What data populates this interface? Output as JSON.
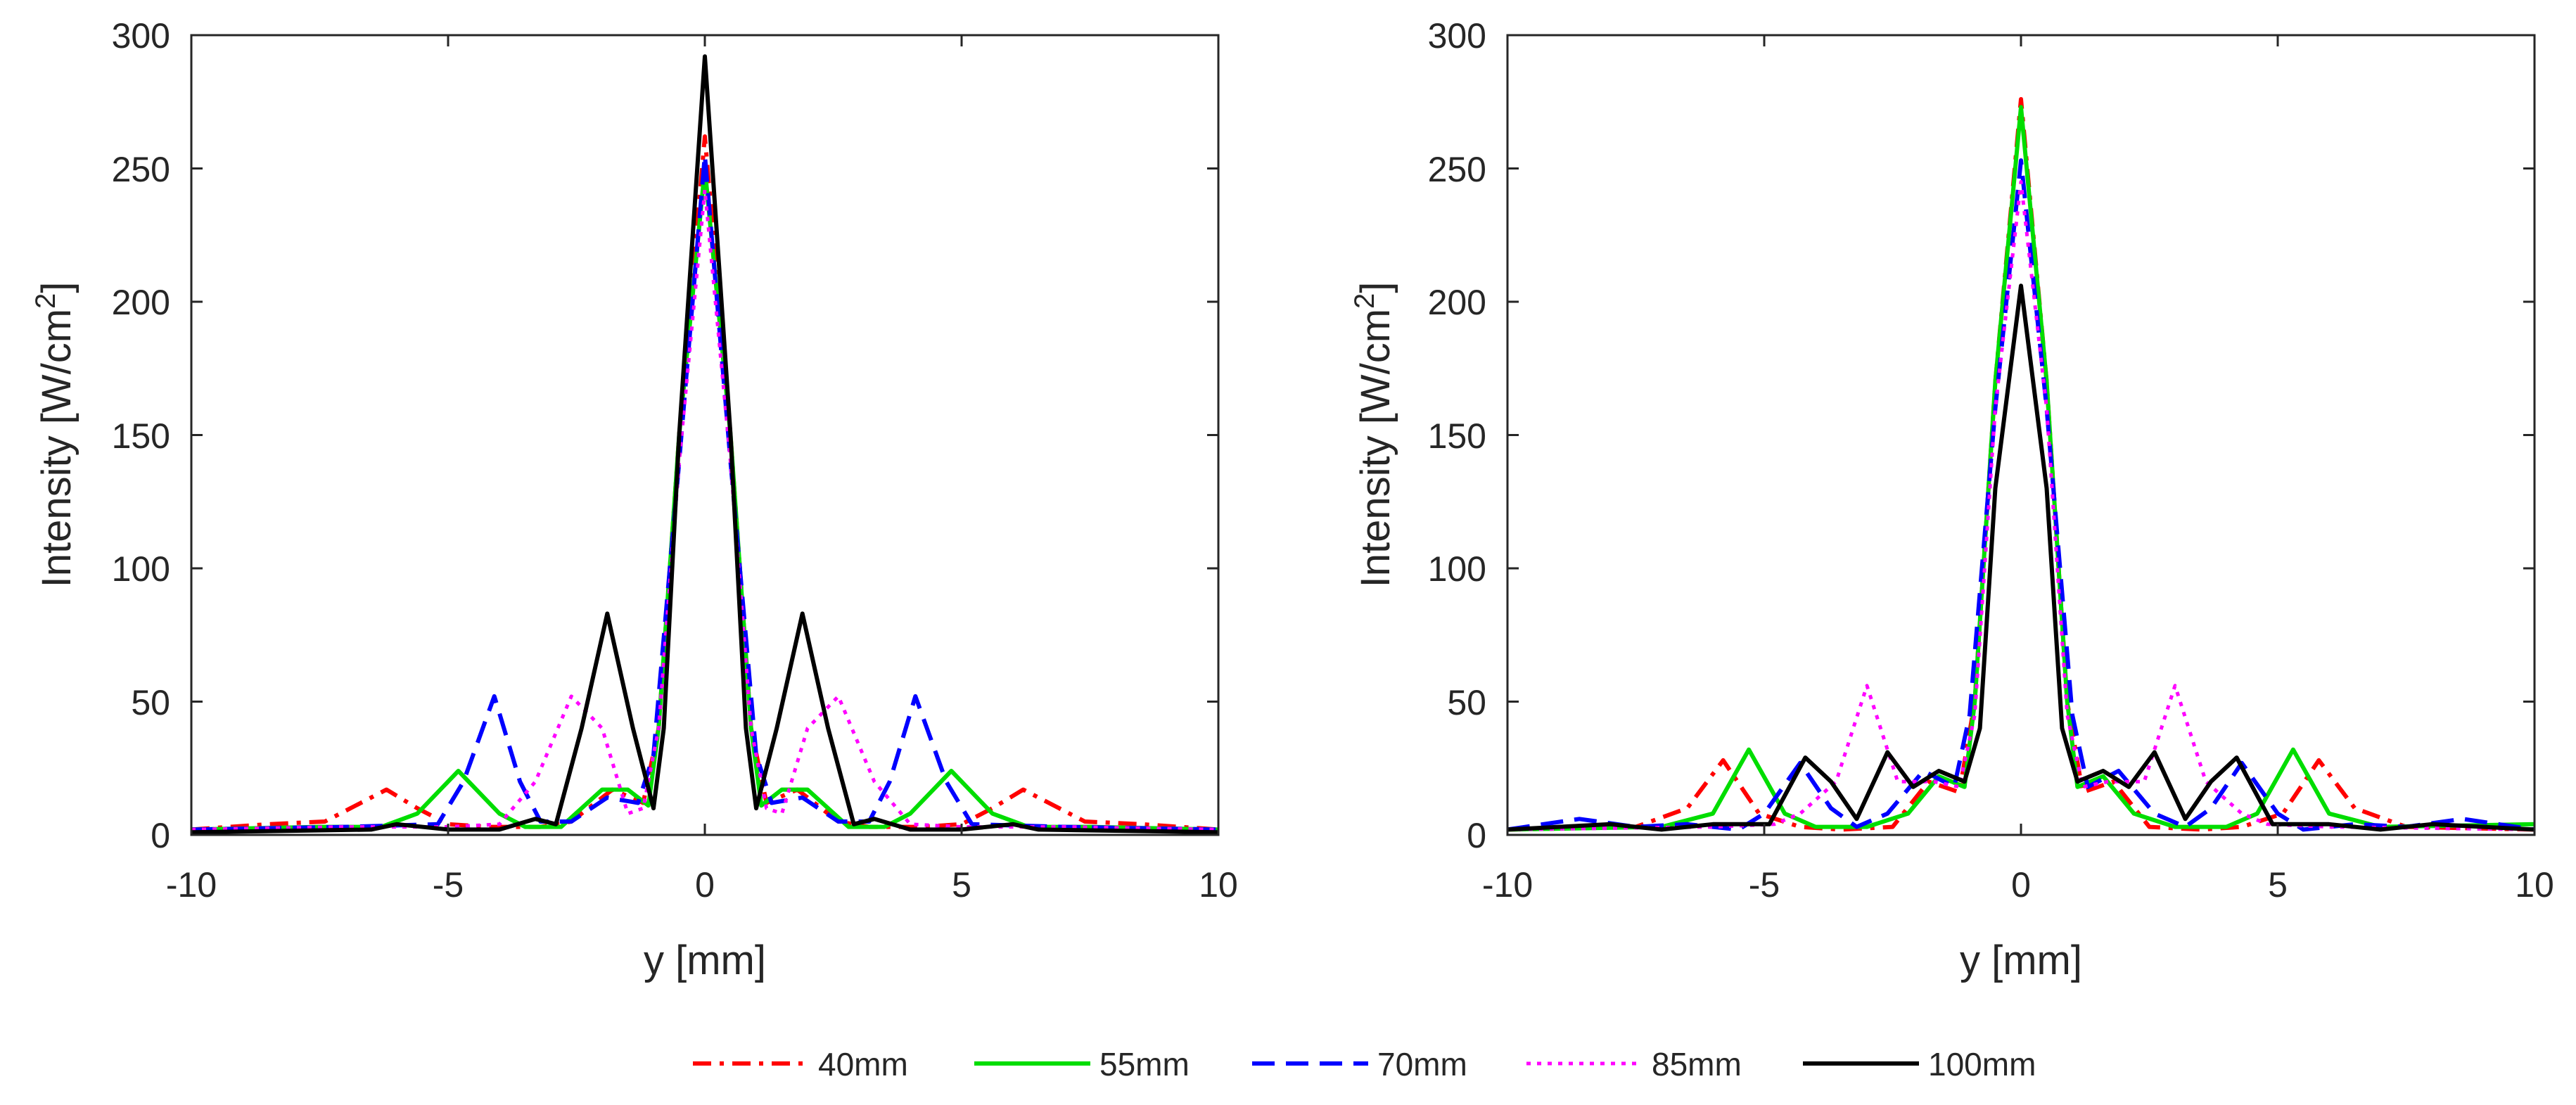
{
  "chart_data": [
    {
      "type": "line",
      "title": "",
      "xlabel": "y [mm]",
      "ylabel_main": "Intensity [W/cm",
      "ylabel_sup": "2",
      "ylabel_end": "]",
      "xlim": [
        -10,
        10
      ],
      "ylim": [
        0,
        300
      ],
      "xticks": [
        -10,
        -5,
        0,
        5,
        10
      ],
      "yticks": [
        0,
        50,
        100,
        150,
        200,
        250,
        300
      ],
      "xtick_labels": [
        "-10",
        "-5",
        "0",
        "5",
        "10"
      ],
      "ytick_labels": [
        "0",
        "50",
        "100",
        "150",
        "200",
        "250",
        "300"
      ],
      "grid": false,
      "series": [
        {
          "name": "40mm",
          "color": "#ff0000",
          "style": "dash-dot",
          "x": [
            -10,
            -8.5,
            -7.4,
            -6.9,
            -6.2,
            -5.6,
            -5.0,
            -4.2,
            -3.2,
            -2.6,
            -1.8,
            -1.2,
            -0.9,
            -0.5,
            0,
            0.5,
            0.9,
            1.2,
            1.8,
            2.6,
            3.2,
            4.2,
            5.0,
            5.6,
            6.2,
            6.9,
            7.4,
            8.5,
            10
          ],
          "y": [
            2,
            4,
            5,
            10,
            17,
            10,
            4,
            3,
            3,
            5,
            17,
            12,
            40,
            150,
            262,
            150,
            40,
            12,
            17,
            5,
            3,
            3,
            4,
            10,
            17,
            10,
            5,
            4,
            2
          ]
        },
        {
          "name": "55mm",
          "color": "#00dd00",
          "style": "solid",
          "x": [
            -10,
            -7.5,
            -6.3,
            -5.6,
            -4.8,
            -4.0,
            -3.5,
            -2.8,
            -2.0,
            -1.5,
            -1.1,
            -0.9,
            -0.5,
            0,
            0.5,
            0.9,
            1.1,
            1.5,
            2.0,
            2.8,
            3.5,
            4.0,
            4.8,
            5.6,
            6.3,
            7.5,
            10
          ],
          "y": [
            2,
            3,
            3,
            8,
            24,
            8,
            3,
            3,
            17,
            17,
            11,
            40,
            150,
            250,
            150,
            40,
            11,
            17,
            17,
            3,
            3,
            8,
            24,
            8,
            3,
            3,
            2
          ]
        },
        {
          "name": "70mm",
          "color": "#0000ff",
          "style": "dash",
          "x": [
            -10,
            -7,
            -5.2,
            -4.7,
            -4.1,
            -3.6,
            -3.2,
            -2.6,
            -1.9,
            -1.3,
            -1.0,
            -0.5,
            0,
            0.5,
            1.0,
            1.3,
            1.9,
            2.6,
            3.2,
            3.6,
            4.1,
            4.7,
            5.2,
            7,
            10
          ],
          "y": [
            2,
            3,
            4,
            20,
            52,
            20,
            5,
            5,
            14,
            12,
            30,
            140,
            255,
            140,
            30,
            12,
            14,
            5,
            5,
            20,
            52,
            20,
            4,
            3,
            2
          ]
        },
        {
          "name": "85mm",
          "color": "#ff00ff",
          "style": "dot",
          "x": [
            -10,
            -7,
            -5,
            -4,
            -3.3,
            -2.6,
            -2.0,
            -1.5,
            -1.2,
            -0.9,
            -0.5,
            0,
            0.5,
            0.9,
            1.2,
            1.5,
            2.0,
            2.6,
            3.3,
            4,
            5,
            7,
            10
          ],
          "y": [
            2,
            3,
            3,
            4,
            20,
            52,
            40,
            8,
            10,
            40,
            140,
            242,
            140,
            40,
            10,
            8,
            40,
            52,
            20,
            4,
            3,
            3,
            2
          ]
        },
        {
          "name": "100mm",
          "color": "#000000",
          "style": "solid",
          "x": [
            -10,
            -6.5,
            -6,
            -5,
            -4,
            -3.3,
            -2.9,
            -2.4,
            -1.9,
            -1.4,
            -1.0,
            -0.8,
            -0.5,
            0,
            0.5,
            0.8,
            1.0,
            1.4,
            1.9,
            2.4,
            2.9,
            3.3,
            4,
            5,
            6,
            6.5,
            10
          ],
          "y": [
            1,
            2,
            4,
            2,
            2,
            6,
            4,
            40,
            83,
            40,
            10,
            40,
            150,
            292,
            150,
            40,
            10,
            40,
            83,
            40,
            4,
            6,
            2,
            2,
            4,
            2,
            1
          ]
        }
      ]
    },
    {
      "type": "line",
      "title": "",
      "xlabel": "y [mm]",
      "ylabel_main": "Intensity [W/cm",
      "ylabel_sup": "2",
      "ylabel_end": "]",
      "xlim": [
        -10,
        10
      ],
      "ylim": [
        0,
        300
      ],
      "xticks": [
        -10,
        -5,
        0,
        5,
        10
      ],
      "yticks": [
        0,
        50,
        100,
        150,
        200,
        250,
        300
      ],
      "xtick_labels": [
        "-10",
        "-5",
        "0",
        "5",
        "10"
      ],
      "ytick_labels": [
        "0",
        "50",
        "100",
        "150",
        "200",
        "250",
        "300"
      ],
      "grid": false,
      "series": [
        {
          "name": "40mm",
          "color": "#ff0000",
          "style": "dash-dot",
          "x": [
            -10,
            -7.5,
            -6.5,
            -5.8,
            -5.1,
            -4.3,
            -3.5,
            -2.5,
            -1.8,
            -1.2,
            -0.9,
            -0.5,
            0,
            0.5,
            0.9,
            1.2,
            1.8,
            2.5,
            3.5,
            4.3,
            5.1,
            5.8,
            6.5,
            7.5,
            10
          ],
          "y": [
            2,
            3,
            10,
            28,
            8,
            3,
            2,
            3,
            20,
            16,
            50,
            170,
            276,
            170,
            50,
            16,
            20,
            3,
            2,
            3,
            8,
            28,
            10,
            3,
            2
          ]
        },
        {
          "name": "55mm",
          "color": "#00dd00",
          "style": "solid",
          "x": [
            -10,
            -7,
            -6,
            -5.3,
            -4.6,
            -4,
            -3,
            -2.2,
            -1.6,
            -1.1,
            -0.9,
            -0.5,
            0,
            0.5,
            0.9,
            1.1,
            1.6,
            2.2,
            3,
            4,
            4.6,
            5.3,
            6,
            7,
            10
          ],
          "y": [
            2,
            3,
            8,
            32,
            8,
            3,
            3,
            8,
            22,
            18,
            50,
            170,
            273,
            170,
            50,
            18,
            22,
            8,
            3,
            3,
            8,
            32,
            8,
            3,
            4
          ]
        },
        {
          "name": "70mm",
          "color": "#0000ff",
          "style": "dash",
          "x": [
            -10,
            -8.6,
            -7.5,
            -6.5,
            -5.5,
            -5,
            -4.3,
            -3.7,
            -3.2,
            -2.6,
            -1.9,
            -1.3,
            -1.0,
            -0.5,
            0,
            0.5,
            1.0,
            1.3,
            1.9,
            2.6,
            3.2,
            3.7,
            4.3,
            5,
            5.5,
            6.5,
            7.5,
            8.6,
            10
          ],
          "y": [
            2,
            6,
            3,
            4,
            2,
            8,
            27,
            10,
            3,
            8,
            24,
            18,
            45,
            160,
            253,
            160,
            45,
            18,
            24,
            8,
            3,
            10,
            27,
            8,
            2,
            4,
            3,
            6,
            2
          ]
        },
        {
          "name": "85mm",
          "color": "#ff00ff",
          "style": "dot",
          "x": [
            -10,
            -6,
            -4.8,
            -4.3,
            -3.6,
            -3.0,
            -2.4,
            -1.7,
            -1.2,
            -0.9,
            -0.5,
            0,
            0.5,
            0.9,
            1.2,
            1.7,
            2.4,
            3.0,
            3.6,
            4.3,
            4.8,
            6,
            10
          ],
          "y": [
            2,
            3,
            4,
            8,
            20,
            56,
            20,
            20,
            18,
            45,
            160,
            245,
            160,
            45,
            18,
            20,
            20,
            56,
            20,
            8,
            4,
            3,
            2
          ]
        },
        {
          "name": "100mm",
          "color": "#000000",
          "style": "solid",
          "x": [
            -10,
            -8,
            -7,
            -6,
            -5.4,
            -4.9,
            -4.2,
            -3.7,
            -3.2,
            -2.6,
            -2.1,
            -1.6,
            -1.1,
            -0.8,
            -0.5,
            0,
            0.5,
            0.8,
            1.1,
            1.6,
            2.1,
            2.6,
            3.2,
            3.7,
            4.2,
            4.9,
            5.4,
            6,
            7,
            8,
            10
          ],
          "y": [
            2,
            4,
            2,
            4,
            4,
            4,
            29,
            20,
            6,
            31,
            18,
            24,
            20,
            40,
            130,
            206,
            130,
            40,
            20,
            24,
            18,
            31,
            6,
            20,
            29,
            4,
            4,
            4,
            2,
            4,
            2
          ]
        }
      ]
    }
  ],
  "legend": {
    "placement": "bottom-center",
    "entries": [
      {
        "label": "40mm",
        "color": "#ff0000",
        "style": "dash-dot"
      },
      {
        "label": "55mm",
        "color": "#00dd00",
        "style": "solid"
      },
      {
        "label": "70mm",
        "color": "#0000ff",
        "style": "dash"
      },
      {
        "label": "85mm",
        "color": "#ff00ff",
        "style": "dot"
      },
      {
        "label": "100mm",
        "color": "#000000",
        "style": "solid"
      }
    ]
  }
}
